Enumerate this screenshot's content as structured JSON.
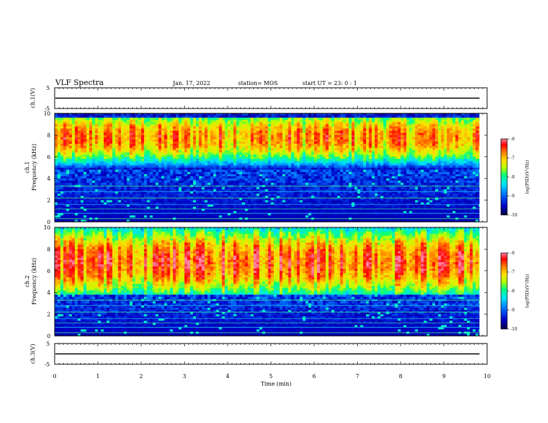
{
  "header": {
    "title": "VLF Spectra",
    "date": "Jan. 17, 2022",
    "station": "station= MOS",
    "start": "start  UT =   23: 0  : 1"
  },
  "colors": {
    "background": "#ffffff",
    "axis": "#000000",
    "spectrum_scale": [
      "#000040",
      "#0000c8",
      "#0078ff",
      "#00e0ff",
      "#00ff80",
      "#b4ff00",
      "#ffe000",
      "#ff8000",
      "#ff0000",
      "#ff80a0"
    ]
  },
  "chart_data": [
    {
      "type": "line",
      "panel": "ch1-waveform",
      "ylabel": "ch.1(V)",
      "ylim": [
        -5,
        5
      ],
      "yticks": [
        "5",
        "-5"
      ],
      "series": [
        {
          "values": [
            -1.5
          ]
        }
      ]
    },
    {
      "type": "heatmap",
      "panel": "ch1-spectrogram",
      "ylabel": "ch.1\nFrequency (kHz)",
      "ylim": [
        0,
        10
      ],
      "yticks": [
        "0",
        "2",
        "4",
        "6",
        "8",
        "10"
      ],
      "xlim": [
        0,
        10
      ],
      "colorbar": {
        "label": "log(PSD)(V²/Hz)",
        "range": [
          -10,
          -6
        ],
        "ticks": [
          "-6",
          "-7",
          "-8",
          "-9",
          "-10"
        ]
      },
      "band": {
        "low_kHz": 4.8,
        "high_kHz": 9.5,
        "peak_kHz": 7.8
      }
    },
    {
      "type": "heatmap",
      "panel": "ch2-spectrogram",
      "ylabel": "ch.2\nFrequency (kHz)",
      "ylim": [
        0,
        10
      ],
      "yticks": [
        "0",
        "2",
        "4",
        "6",
        "8",
        "10"
      ],
      "xlim": [
        0,
        10
      ],
      "colorbar": {
        "label": "log(PSD)(V²/Hz)",
        "range": [
          -10,
          -6
        ],
        "ticks": [
          "-6",
          "-7",
          "-8",
          "-9",
          "-10"
        ]
      },
      "band": {
        "low_kHz": 3.8,
        "high_kHz": 10.0,
        "peak_kHz": 6.8
      }
    },
    {
      "type": "line",
      "panel": "ch3-waveform",
      "ylabel": "ch.3(V)",
      "ylim": [
        -5,
        5
      ],
      "yticks": [
        "5",
        "-5"
      ],
      "series": [
        {
          "values": [
            -1.5
          ]
        }
      ]
    }
  ],
  "xaxis": {
    "label": "Time  (min)",
    "ticks": [
      "0",
      "1",
      "2",
      "3",
      "4",
      "5",
      "6",
      "7",
      "8",
      "9",
      "10"
    ],
    "xlim": [
      0,
      10
    ]
  }
}
